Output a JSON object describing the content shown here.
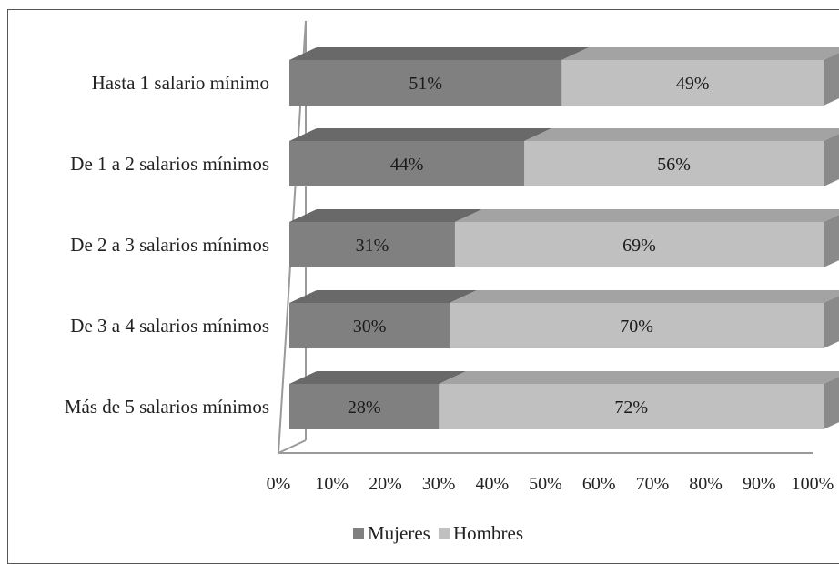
{
  "chart_data": {
    "type": "bar",
    "orientation": "horizontal",
    "stacked": "percent",
    "categories": [
      "Hasta 1 salario mínimo",
      "De 1 a 2 salarios mínimos",
      "De 2 a 3 salarios mínimos",
      "De 3 a 4 salarios mínimos",
      "Más de 5 salarios mínimos"
    ],
    "series": [
      {
        "name": "Mujeres",
        "values": [
          51,
          44,
          31,
          30,
          28
        ],
        "labels": [
          "51%",
          "44%",
          "31%",
          "30%",
          "28%"
        ],
        "color": "#808080"
      },
      {
        "name": "Hombres",
        "values": [
          49,
          56,
          69,
          70,
          72
        ],
        "labels": [
          "49%",
          "56%",
          "69%",
          "70%",
          "72%"
        ],
        "color": "#c0c0c0"
      }
    ],
    "xlim": [
      0,
      100
    ],
    "x_ticks": [
      "0%",
      "10%",
      "20%",
      "30%",
      "40%",
      "50%",
      "60%",
      "70%",
      "80%",
      "90%",
      "100%"
    ],
    "grid": false,
    "legend_position": "bottom",
    "style": "3d"
  }
}
